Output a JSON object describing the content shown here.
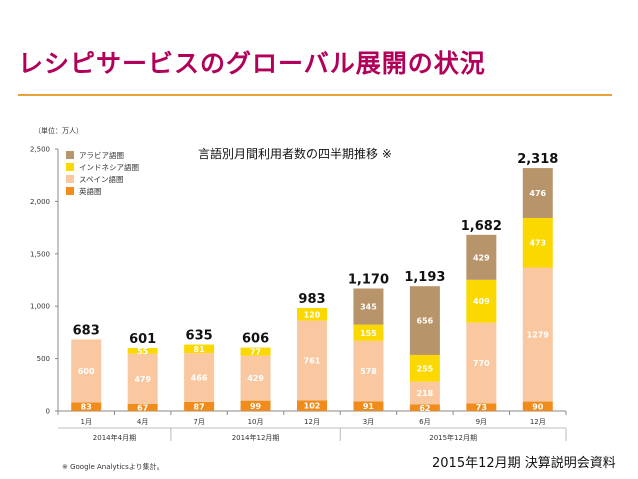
{
  "page": {
    "title": "レシピサービスのグローバル展開の状況",
    "source": "2015年12月期 決算説明会資料",
    "footnote": "※ Google Analyticsより集計。"
  },
  "chart_data": {
    "type": "bar",
    "stacked": true,
    "title": "言語別月間利用者数の四半期推移 ※",
    "unit_label": "（単位：万人）",
    "ylim": [
      0,
      2500
    ],
    "yticks": [
      "0",
      "500",
      "1,000",
      "1,500",
      "2,000",
      "2,500"
    ],
    "ytick_values": [
      0,
      500,
      1000,
      1500,
      2000,
      2500
    ],
    "categories": [
      "1月",
      "4月",
      "7月",
      "10月",
      "12月",
      "3月",
      "6月",
      "9月",
      "12月"
    ],
    "period_groups": [
      {
        "label": "2014年4月期",
        "from": 0,
        "to": 1
      },
      {
        "label": "2014年12月期",
        "from": 2,
        "to": 4
      },
      {
        "label": "2015年12月期",
        "from": 5,
        "to": 8
      }
    ],
    "totals": [
      "683",
      "601",
      "635",
      "606",
      "983",
      "1,170",
      "1,193",
      "1,682",
      "2,318"
    ],
    "series": [
      {
        "name": "英語圏",
        "color": "#f08c1c",
        "values": [
          83,
          67,
          87,
          99,
          102,
          91,
          62,
          73,
          90
        ]
      },
      {
        "name": "スペイン語圏",
        "color": "#f9c8a0",
        "values": [
          600,
          479,
          466,
          429,
          761,
          578,
          218,
          770,
          1279
        ]
      },
      {
        "name": "インドネシア語圏",
        "color": "#fbd800",
        "values": [
          0,
          55,
          81,
          77,
          120,
          155,
          255,
          409,
          473
        ]
      },
      {
        "name": "アラビア語圏",
        "color": "#b8946a",
        "values": [
          0,
          0,
          0,
          0,
          0,
          345,
          656,
          429,
          476
        ]
      }
    ],
    "legend_order": [
      "アラビア語圏",
      "インドネシア語圏",
      "スペイン語圏",
      "英語圏"
    ],
    "legend_position": "top-left",
    "grid": false
  }
}
